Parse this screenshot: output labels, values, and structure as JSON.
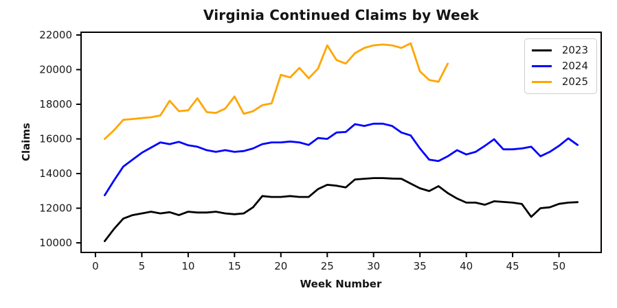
{
  "chart_data": {
    "type": "line",
    "title": "Virginia Continued Claims by Week",
    "xlabel": "Week Number",
    "ylabel": "Claims",
    "x_ticks": [
      0,
      5,
      10,
      15,
      20,
      25,
      30,
      35,
      40,
      45,
      50
    ],
    "y_ticks": [
      10000,
      12000,
      14000,
      16000,
      18000,
      20000,
      22000
    ],
    "xlim": [
      -1.55,
      54.55
    ],
    "ylim": [
      9446,
      22158
    ],
    "grid": false,
    "legend_position": "upper right",
    "axis_color": "#000000",
    "background_color": "#ffffff",
    "x_unit": "week number, data starts at week 1",
    "series": [
      {
        "name": "2023",
        "color": "#000000",
        "start_week": 1,
        "values": [
          10100,
          10800,
          11400,
          11600,
          11700,
          11800,
          11700,
          11770,
          11600,
          11800,
          11750,
          11750,
          11800,
          11700,
          11650,
          11700,
          12050,
          12700,
          12650,
          12650,
          12700,
          12650,
          12650,
          13100,
          13350,
          13300,
          13200,
          13660,
          13700,
          13740,
          13740,
          13710,
          13700,
          13420,
          13150,
          12990,
          13270,
          12870,
          12560,
          12320,
          12320,
          12200,
          12400,
          12360,
          12320,
          12240,
          11500,
          12000,
          12050,
          12250,
          12320,
          12350
        ]
      },
      {
        "name": "2024",
        "color": "#0000ff",
        "start_week": 1,
        "values": [
          12750,
          13600,
          14400,
          14800,
          15200,
          15500,
          15800,
          15700,
          15830,
          15630,
          15550,
          15350,
          15250,
          15350,
          15250,
          15300,
          15450,
          15700,
          15800,
          15800,
          15850,
          15800,
          15650,
          16050,
          16000,
          16370,
          16400,
          16850,
          16750,
          16880,
          16880,
          16750,
          16370,
          16200,
          15450,
          14800,
          14720,
          15000,
          15350,
          15100,
          15250,
          15600,
          15980,
          15400,
          15400,
          15450,
          15550,
          15000,
          15250,
          15600,
          16030,
          15650
        ]
      },
      {
        "name": "2025",
        "color": "#ffa500",
        "start_week": 1,
        "values": [
          16000,
          16500,
          17100,
          17150,
          17200,
          17250,
          17350,
          18200,
          17600,
          17650,
          18350,
          17550,
          17500,
          17750,
          18450,
          17450,
          17600,
          17950,
          18050,
          19700,
          19550,
          20100,
          19500,
          20050,
          21400,
          20550,
          20350,
          20950,
          21250,
          21400,
          21450,
          21400,
          21250,
          21520,
          19900,
          19400,
          19300,
          20350
        ]
      }
    ]
  }
}
